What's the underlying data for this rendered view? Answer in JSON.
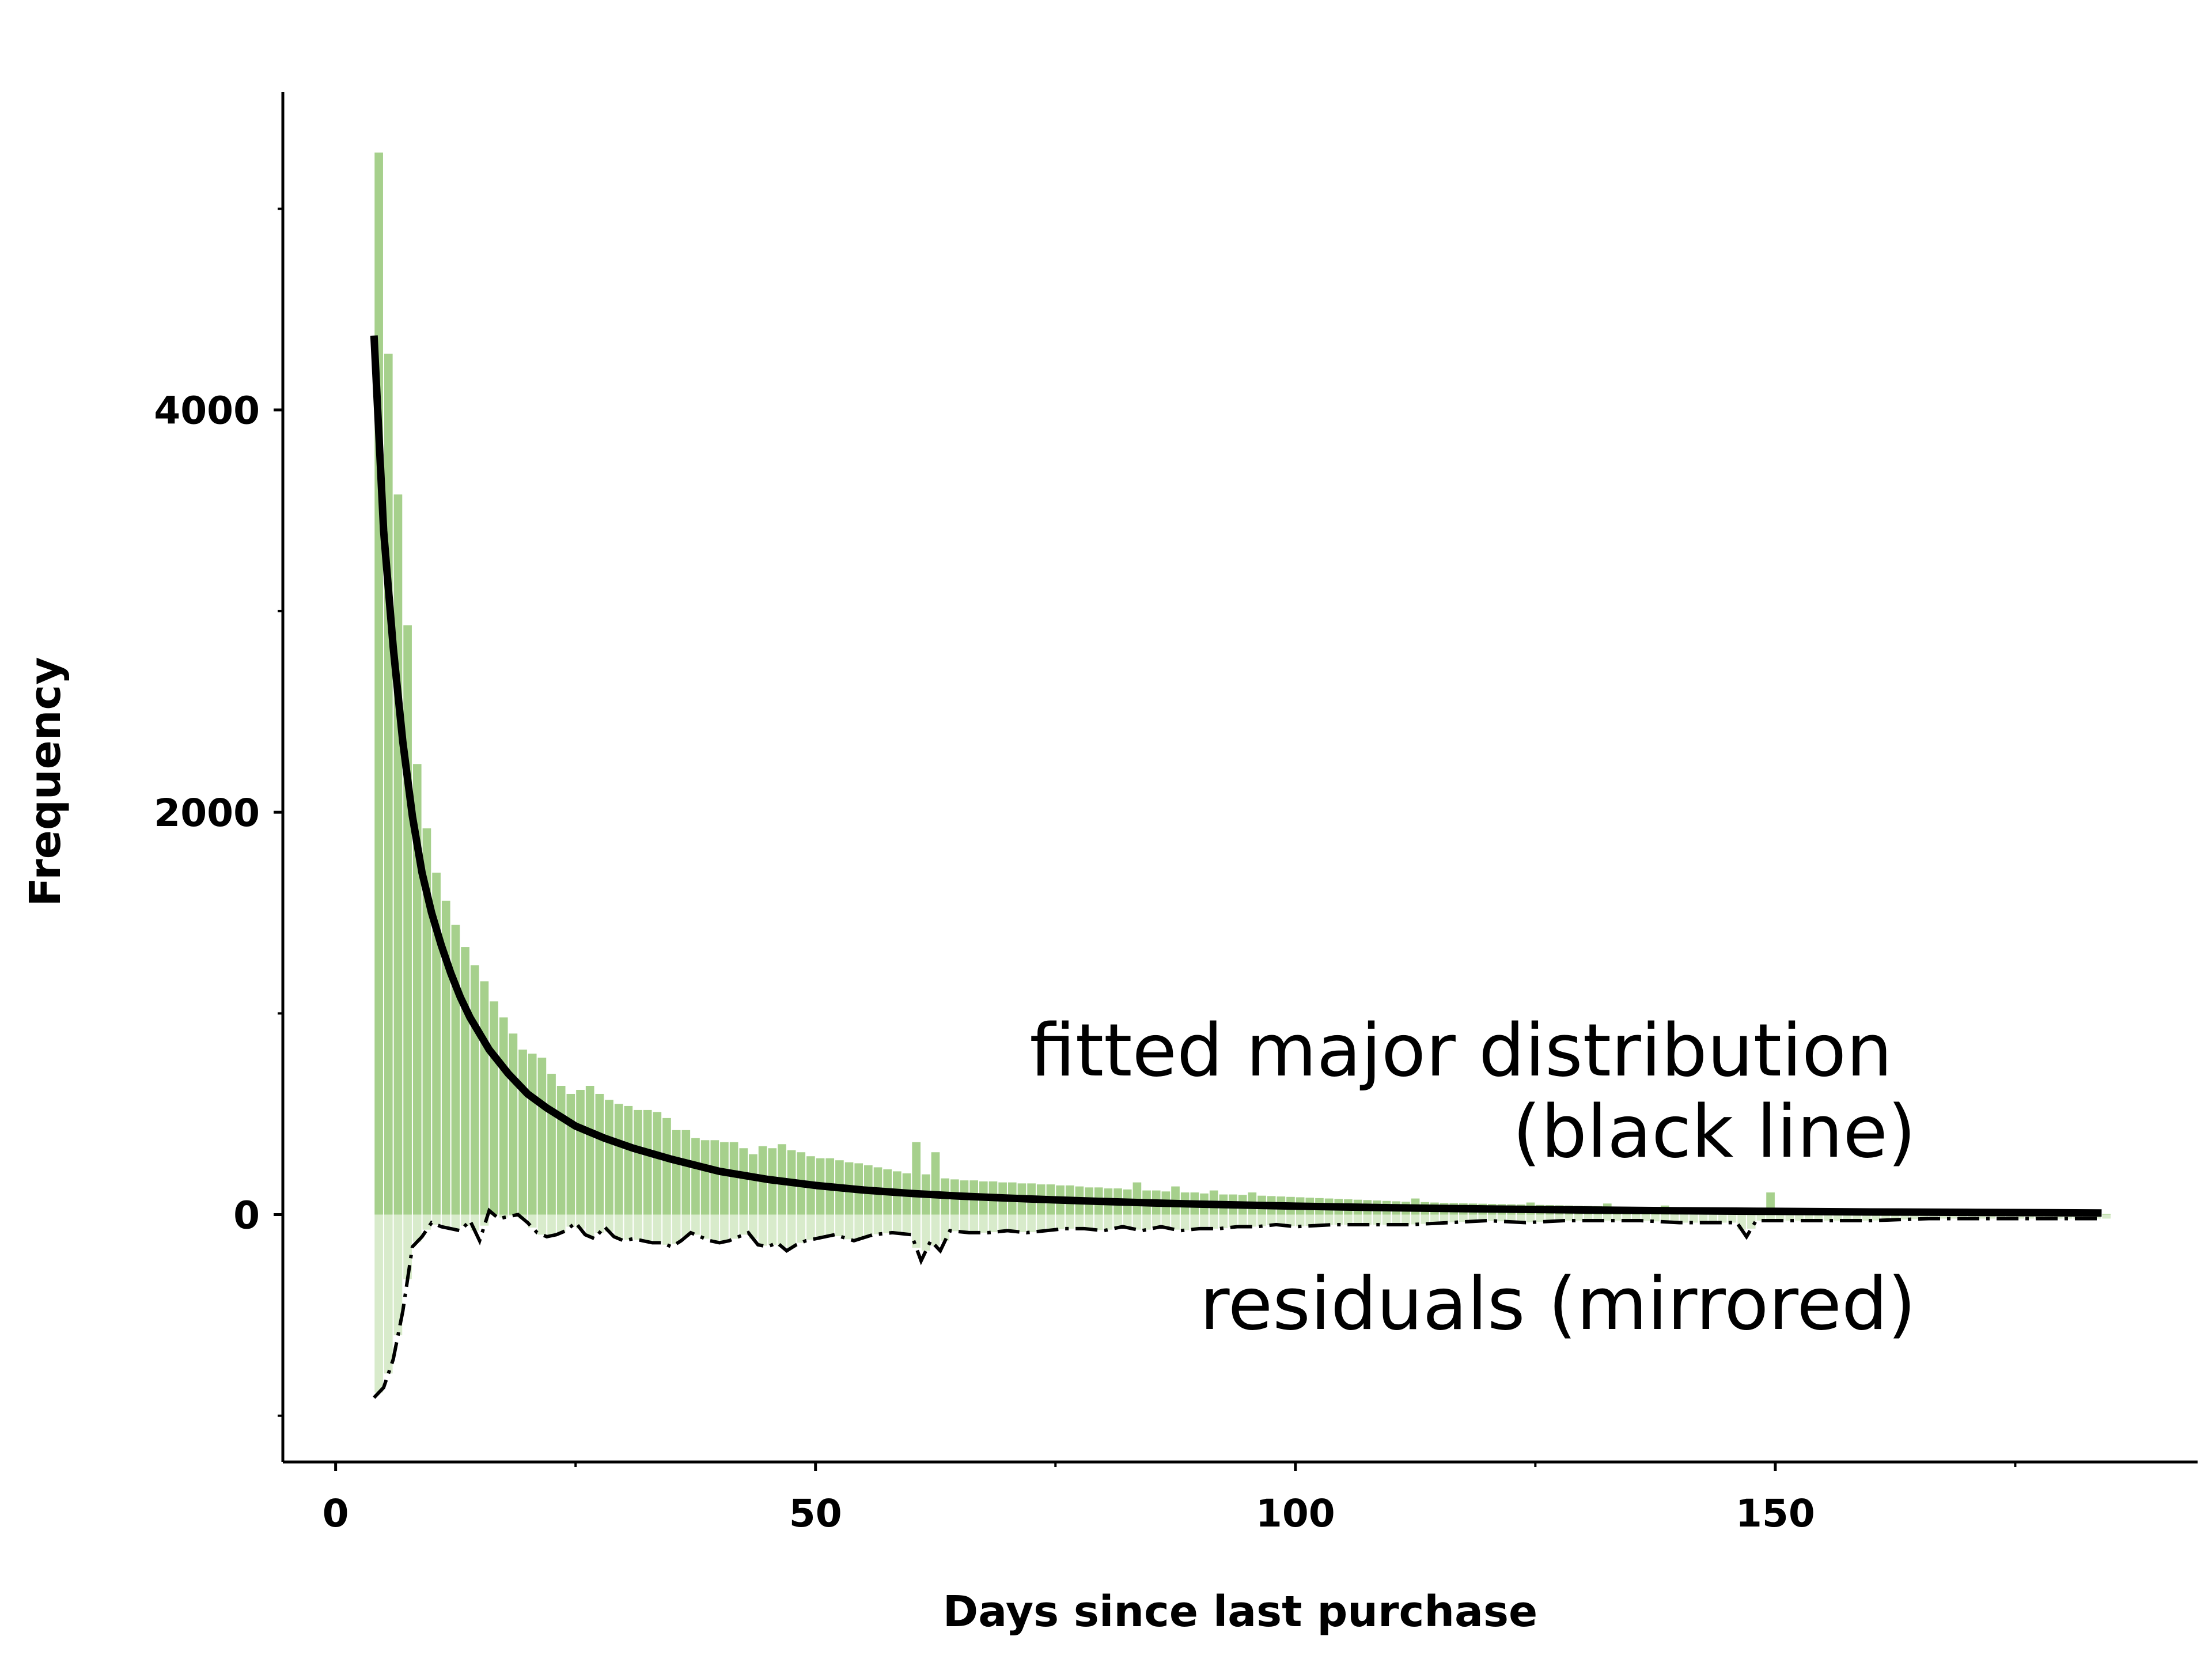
{
  "chart_data": {
    "type": "bar",
    "title": "",
    "xlabel": "Days since last purchase",
    "ylabel": "Frequency",
    "xlim": [
      -5.5,
      194
    ],
    "ylim": [
      -1230,
      5580
    ],
    "x_major_ticks": [
      0,
      50,
      100,
      150
    ],
    "x_minor_ticks": [
      25,
      75,
      125,
      175
    ],
    "y_major_ticks": [
      0,
      2000,
      4000
    ],
    "y_minor_ticks": [
      -1000,
      1000,
      3000,
      5000
    ],
    "x_tick_labels": [
      "0",
      "50",
      "100",
      "150"
    ],
    "y_tick_labels": [
      "0",
      "2000",
      "4000"
    ],
    "grid": false,
    "legend": "none",
    "colors": {
      "bars": "#a6d08c",
      "bars_mirrored": "#d8ebcb",
      "fit_line": "#000000",
      "residual_line": "#000000"
    },
    "annotations": {
      "fit_line_1": "fitted major distribution",
      "fit_line_2": "(black line)",
      "residuals": "residuals (mirrored)"
    },
    "bins": {
      "start": 4,
      "width": 1,
      "counts": [
        5280,
        4280,
        3580,
        2930,
        2240,
        1920,
        1700,
        1560,
        1440,
        1330,
        1240,
        1160,
        1060,
        980,
        900,
        820,
        800,
        780,
        700,
        640,
        600,
        620,
        640,
        600,
        570,
        550,
        540,
        520,
        520,
        510,
        480,
        420,
        420,
        380,
        370,
        370,
        360,
        360,
        330,
        300,
        340,
        330,
        350,
        320,
        310,
        290,
        280,
        280,
        270,
        260,
        255,
        245,
        235,
        225,
        215,
        205,
        360,
        200,
        310,
        180,
        175,
        170,
        170,
        165,
        165,
        160,
        160,
        155,
        155,
        150,
        150,
        145,
        145,
        140,
        135,
        135,
        130,
        130,
        125,
        160,
        120,
        120,
        115,
        140,
        110,
        110,
        105,
        120,
        100,
        100,
        98,
        110,
        94,
        92,
        90,
        88,
        86,
        84,
        82,
        80,
        78,
        76,
        74,
        72,
        70,
        68,
        66,
        64,
        80,
        62,
        60,
        58,
        57,
        56,
        55,
        54,
        53,
        52,
        51,
        50,
        60,
        48,
        47,
        46,
        45,
        44,
        43,
        42,
        55,
        40,
        39,
        38,
        37,
        36,
        45,
        34,
        33,
        32,
        31,
        30,
        29,
        28,
        27,
        26,
        25,
        110,
        24,
        23,
        22,
        21,
        20,
        19,
        18,
        17,
        16,
        15,
        14,
        13,
        12,
        12,
        11,
        11,
        10,
        10,
        9,
        9,
        8,
        8,
        7,
        7,
        6,
        6,
        5,
        5,
        5,
        4,
        4,
        4,
        3,
        3,
        3
      ]
    },
    "fit_curve": {
      "x": [
        4,
        5,
        6,
        7,
        8,
        9,
        10,
        11,
        12,
        13,
        14,
        16,
        18,
        20,
        22,
        25,
        28,
        31,
        35,
        40,
        45,
        50,
        55,
        60,
        65,
        70,
        75,
        80,
        85,
        90,
        95,
        100,
        110,
        120,
        130,
        140,
        150,
        160,
        170,
        184
      ],
      "y": [
        4370,
        3400,
        2820,
        2350,
        1980,
        1700,
        1500,
        1340,
        1200,
        1080,
        980,
        820,
        700,
        600,
        530,
        440,
        380,
        330,
        275,
        215,
        175,
        145,
        122,
        105,
        92,
        82,
        73,
        65,
        58,
        52,
        47,
        42,
        34,
        28,
        23,
        19,
        16,
        13,
        11,
        8
      ]
    },
    "residuals": {
      "x": [
        4,
        5,
        6,
        7,
        8,
        9,
        10,
        11,
        12,
        13,
        14,
        15,
        16,
        17,
        18,
        19,
        20,
        21,
        22,
        23,
        24,
        25,
        26,
        27,
        28,
        29,
        30,
        31,
        32,
        33,
        34,
        35,
        36,
        37,
        38,
        39,
        40,
        41,
        42,
        43,
        44,
        45,
        46,
        47,
        48,
        49,
        50,
        52,
        54,
        56,
        58,
        60,
        61,
        62,
        63,
        64,
        66,
        68,
        70,
        72,
        74,
        76,
        78,
        80,
        82,
        84,
        86,
        88,
        90,
        92,
        94,
        96,
        98,
        100,
        104,
        108,
        112,
        116,
        120,
        124,
        128,
        132,
        136,
        140,
        144,
        146,
        147,
        148,
        152,
        156,
        160,
        166,
        172,
        178,
        184
      ],
      "y": [
        -910,
        -860,
        -720,
        -480,
        -160,
        -110,
        -40,
        -60,
        -70,
        -80,
        -30,
        -130,
        20,
        -20,
        -10,
        0,
        -40,
        -90,
        -110,
        -100,
        -80,
        -40,
        -100,
        -120,
        -60,
        -110,
        -130,
        -120,
        -130,
        -140,
        -140,
        -160,
        -130,
        -90,
        -110,
        -130,
        -140,
        -130,
        -110,
        -90,
        -150,
        -160,
        -140,
        -180,
        -150,
        -130,
        -120,
        -100,
        -130,
        -100,
        -90,
        -100,
        -230,
        -130,
        -180,
        -80,
        -90,
        -90,
        -80,
        -90,
        -80,
        -70,
        -70,
        -80,
        -60,
        -80,
        -60,
        -80,
        -70,
        -70,
        -60,
        -60,
        -50,
        -60,
        -50,
        -50,
        -50,
        -40,
        -30,
        -40,
        -30,
        -30,
        -30,
        -40,
        -40,
        -40,
        -110,
        -30,
        -30,
        -30,
        -30,
        -20,
        -20,
        -20,
        -20
      ]
    }
  }
}
